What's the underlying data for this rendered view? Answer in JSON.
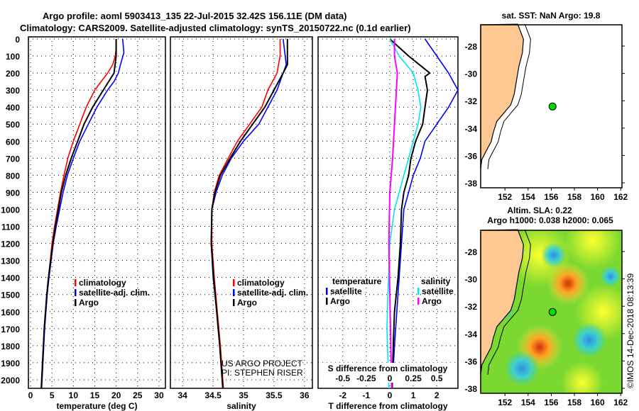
{
  "header": {
    "title1": "Argo profile: aoml 5903413_135 22-Jul-2015 32.42S 156.11E (DM data)",
    "title2": "Climatology: CARS2009. Satellite-adjusted climatology: synTS_20150722.nc (0.1d earlier)"
  },
  "footer": {
    "stamp": "©IMOS 14-Dec-2018 08:13:39",
    "credit1": "US ARGO PROJECT",
    "credit2": "PI: STEPHEN RISER"
  },
  "colors": {
    "clim": "#ff0000",
    "sat": "#0000ff",
    "argo": "#000000",
    "ssat": "#00e5ee",
    "sargo": "#ff00ff",
    "land": "#fdc891",
    "float": "#00dd00"
  },
  "chart_data": [
    {
      "type": "line",
      "xlabel": "temperature (deg C)",
      "ylabel": "depth",
      "xlim": [
        -0.5,
        31.5
      ],
      "ylim": [
        0,
        2050
      ],
      "xticks": [
        0,
        5,
        10,
        15,
        20,
        25,
        30
      ],
      "yticks": [
        0,
        100,
        200,
        300,
        400,
        500,
        600,
        700,
        800,
        900,
        1000,
        1100,
        1200,
        1300,
        1400,
        1500,
        1600,
        1700,
        1800,
        1900,
        2000
      ],
      "legend": [
        "climatology",
        "satellite-adj. clim.",
        "Argo"
      ],
      "series": [
        {
          "name": "climatology",
          "color": "#ff0000",
          "depth": [
            0,
            50,
            100,
            150,
            200,
            300,
            400,
            500,
            600,
            700,
            800,
            900,
            1000,
            1100,
            1200,
            1300,
            1400,
            1500,
            1700,
            1900,
            2050
          ],
          "values": [
            20,
            20,
            19.8,
            19.2,
            18,
            15,
            13,
            11.5,
            10,
            8.7,
            7.8,
            7,
            6.3,
            5.6,
            5,
            4.6,
            4.2,
            3.8,
            3.2,
            2.8,
            2.5
          ]
        },
        {
          "name": "satellite-adj. clim.",
          "color": "#0000ff",
          "depth": [
            0,
            80,
            150,
            200,
            250,
            300,
            400,
            500,
            600,
            700,
            800,
            900,
            1000,
            1100,
            1200,
            1300,
            1400,
            1500,
            1700,
            1900,
            2050
          ],
          "values": [
            21.5,
            21.8,
            21,
            20.5,
            19.5,
            18,
            15.5,
            13.5,
            11.5,
            10,
            8.6,
            7.6,
            6.8,
            6,
            5.3,
            4.8,
            4.3,
            3.9,
            3.3,
            2.9,
            2.6
          ]
        },
        {
          "name": "Argo",
          "color": "#000000",
          "depth": [
            0,
            100,
            200,
            300,
            400,
            500,
            600,
            700,
            800,
            900,
            1000,
            1100,
            1200,
            1300,
            1400,
            1500,
            1700,
            1900,
            2050
          ],
          "values": [
            20,
            20,
            19.5,
            17,
            14.5,
            12.5,
            11,
            9.5,
            8.2,
            7.2,
            6.5,
            5.8,
            5.2,
            4.7,
            4.2,
            3.8,
            3.2,
            2.8,
            2.5
          ]
        }
      ]
    },
    {
      "type": "line",
      "xlabel": "salinity",
      "ylabel": "depth",
      "xlim": [
        33.8,
        36.13
      ],
      "ylim": [
        0,
        2050
      ],
      "xticks": [
        34,
        34.5,
        35,
        35.5,
        36
      ],
      "legend": [
        "climatology",
        "satellite-adj. clim.",
        "Argo"
      ],
      "series": [
        {
          "name": "climatology",
          "color": "#ff0000",
          "depth": [
            0,
            100,
            200,
            300,
            400,
            500,
            600,
            700,
            800,
            900,
            1000,
            1200,
            1400,
            1600,
            1800,
            2050
          ],
          "values": [
            35.6,
            35.6,
            35.55,
            35.4,
            35.3,
            35.1,
            34.9,
            34.75,
            34.6,
            34.52,
            34.48,
            34.48,
            34.52,
            34.57,
            34.62,
            34.67
          ]
        },
        {
          "name": "satellite-adj. clim.",
          "color": "#0000ff",
          "depth": [
            0,
            150,
            250,
            300,
            400,
            500,
            600,
            700,
            800,
            900,
            1000,
            1200,
            1400,
            1600,
            1800,
            2050
          ],
          "values": [
            35.65,
            35.7,
            35.6,
            35.55,
            35.4,
            35.25,
            35,
            34.8,
            34.65,
            34.55,
            34.48,
            34.47,
            34.5,
            34.56,
            34.61,
            34.66
          ]
        },
        {
          "name": "Argo",
          "color": "#000000",
          "depth": [
            0,
            150,
            200,
            300,
            400,
            500,
            600,
            700,
            800,
            900,
            1000,
            1200,
            1400,
            1600,
            1800,
            2050
          ],
          "values": [
            35.72,
            35.72,
            35.65,
            35.5,
            35.35,
            35.15,
            34.95,
            34.78,
            34.62,
            34.53,
            34.48,
            34.47,
            34.51,
            34.56,
            34.61,
            34.66
          ]
        }
      ]
    },
    {
      "type": "line",
      "xlabel": "T difference from climatology",
      "x2label": "S difference from climatology",
      "xlim": [
        -3.05,
        2.9
      ],
      "ylim": [
        0,
        2050
      ],
      "xticks": [
        -2,
        -1,
        0,
        1,
        2
      ],
      "x2ticks": [
        -0.5,
        -0.25,
        0,
        0.25,
        0.5
      ],
      "legend_t_title": "temperature",
      "legend_s_title": "salinity",
      "legend": [
        "satellite",
        "Argo",
        "satellite",
        "Argo"
      ],
      "series": [
        {
          "name": "T satellite",
          "axis": "T",
          "color": "#0000ff",
          "depth": [
            0,
            100,
            200,
            300,
            400,
            500,
            600,
            700,
            800,
            900,
            1000,
            1200,
            1400,
            1600,
            1800,
            2050
          ],
          "values": [
            1.5,
            2,
            2.5,
            2.9,
            2.5,
            2,
            1.5,
            1.3,
            1,
            0.8,
            0.6,
            0.5,
            0.4,
            0.3,
            0.2,
            0.1
          ]
        },
        {
          "name": "T Argo",
          "axis": "T",
          "color": "#000000",
          "depth": [
            0,
            100,
            200,
            220,
            300,
            400,
            500,
            600,
            700,
            800,
            900,
            1000,
            1200,
            1400,
            1600,
            1800,
            2050
          ],
          "values": [
            0,
            0.8,
            1.7,
            1.5,
            1.6,
            1.5,
            1.4,
            1.1,
            0.9,
            0.8,
            0.6,
            0.5,
            0.45,
            0.35,
            0.2,
            0.15,
            0.1
          ]
        },
        {
          "name": "S satellite",
          "axis": "S",
          "color": "#00e5ee",
          "depth": [
            0,
            100,
            200,
            300,
            400,
            500,
            600,
            700,
            800,
            1000,
            1200,
            1500,
            1700,
            2050
          ],
          "values": [
            0,
            0.1,
            0.25,
            0.3,
            0.33,
            0.3,
            0.25,
            0.2,
            0.15,
            0.05,
            0,
            -0.02,
            -0.03,
            -0.01
          ]
        },
        {
          "name": "S Argo",
          "axis": "S",
          "color": "#ff00ff",
          "depth": [
            0,
            100,
            200,
            300,
            500,
            700,
            900,
            1200,
            1500,
            2050
          ],
          "values": [
            0.05,
            0.05,
            0.08,
            0.07,
            0.05,
            0.03,
            0,
            -0.01,
            0,
            0.02
          ]
        }
      ]
    },
    {
      "type": "map",
      "title": "sat. SST: NaN Argo: 19.8",
      "lon_ticks": [
        152,
        154,
        156,
        158,
        160,
        162
      ],
      "lat_ticks": [
        -28,
        -30,
        -32,
        -34,
        -36,
        -38
      ],
      "float": {
        "lon": 156.11,
        "lat": -32.42
      }
    },
    {
      "type": "heatmap",
      "title1": "Altim. SLA: 0.22",
      "title2": "Argo h1000: 0.038 h2000: 0.065",
      "lon_ticks": [
        152,
        154,
        156,
        158,
        160,
        162
      ],
      "lat_ticks": [
        -28,
        -30,
        -32,
        -34,
        -36,
        -38
      ],
      "float": {
        "lon": 156.11,
        "lat": -32.42
      }
    }
  ]
}
